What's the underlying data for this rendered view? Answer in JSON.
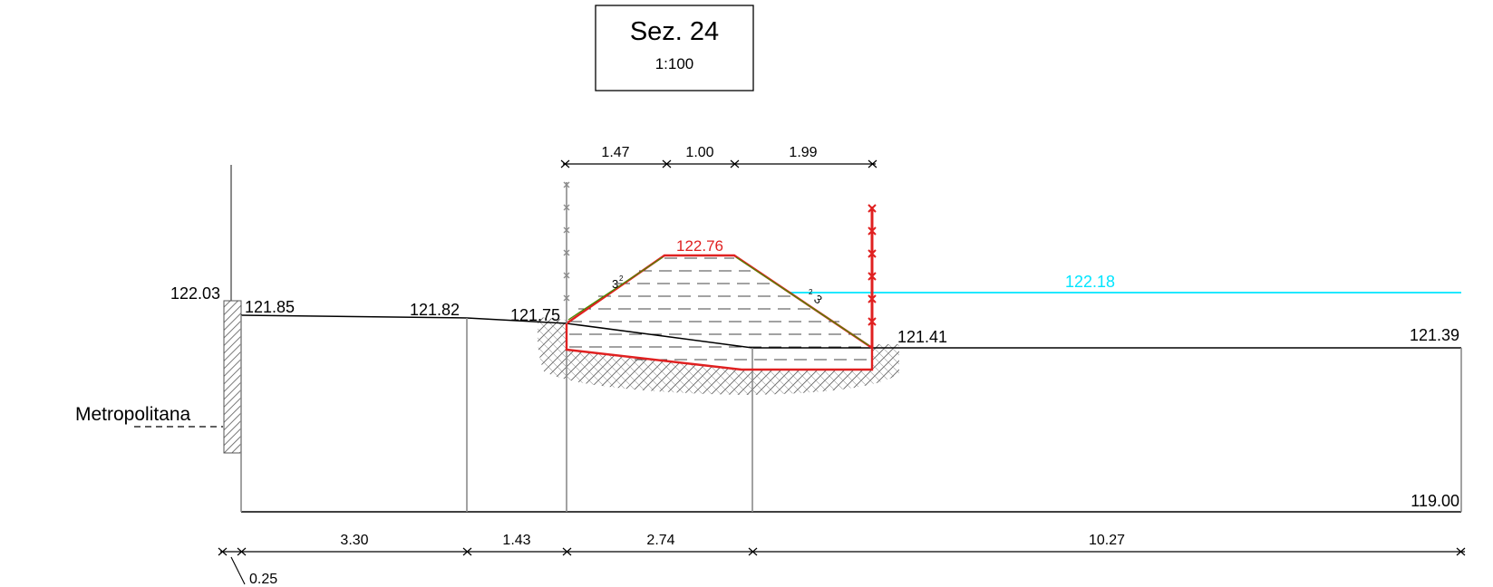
{
  "title_block": {
    "section": "Sez. 24",
    "scale": "1:100"
  },
  "terrain_elevations": {
    "wall_top": "122.03",
    "left_edge": "121.85",
    "p2": "121.82",
    "p3": "121.75",
    "right_toe": "121.41",
    "right_edge": "121.39",
    "datum": "119.00"
  },
  "embankment": {
    "crest_elevation": "122.76",
    "slope_left": "3",
    "slope_right": "3",
    "slope_ratio": "2"
  },
  "water_level": {
    "elevation": "122.18",
    "color": "#00e5ff"
  },
  "labels": {
    "wall_name": "Metropolitana"
  },
  "top_dimensions": [
    "1.47",
    "1.00",
    "1.99"
  ],
  "bottom_dimensions": [
    "3.30",
    "1.43",
    "2.74",
    "10.27"
  ],
  "wall_offset": "0.25",
  "colors": {
    "red": "#e02020",
    "water": "#00e5ff",
    "green": "#4a8a00",
    "line": "#000000",
    "grey": "#8a8a8a"
  }
}
